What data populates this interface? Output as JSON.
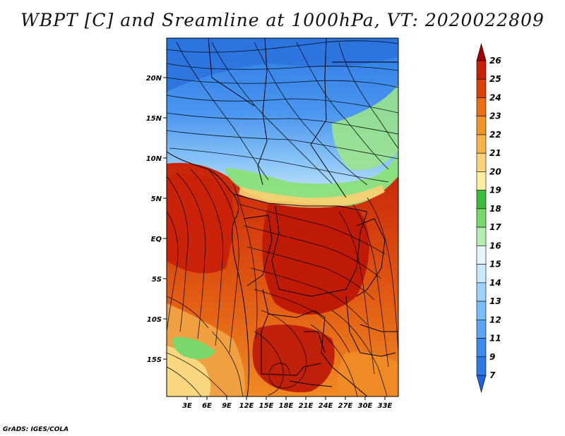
{
  "title": "WBPT [C] and Sreamline at 1000hPa, VT: 2020022809",
  "credit": "GrADS: IGES/COLA",
  "lat_labels": [
    "20N",
    "15N",
    "10N",
    "5N",
    "EQ",
    "5S",
    "10S",
    "15S"
  ],
  "lon_labels": [
    "3E",
    "6E",
    "9E",
    "12E",
    "15E",
    "18E",
    "21E",
    "24E",
    "27E",
    "30E",
    "33E"
  ],
  "colorbar": {
    "labels": [
      "7",
      "9",
      "11",
      "12",
      "13",
      "14",
      "15",
      "16",
      "17",
      "18",
      "19",
      "20",
      "21",
      "22",
      "23",
      "24",
      "25",
      "26"
    ],
    "colors": [
      "#1e64dc",
      "#2c7ae6",
      "#3c8cf0",
      "#5aa5f5",
      "#78bef9",
      "#9cd2fb",
      "#c8e8fc",
      "#e6f6ff",
      "#b4ecb0",
      "#78d868",
      "#3cbc3c",
      "#fff0a0",
      "#fad278",
      "#f5b44a",
      "#f09628",
      "#eb6e14",
      "#dc410a",
      "#c81e05",
      "#a00000"
    ]
  }
}
